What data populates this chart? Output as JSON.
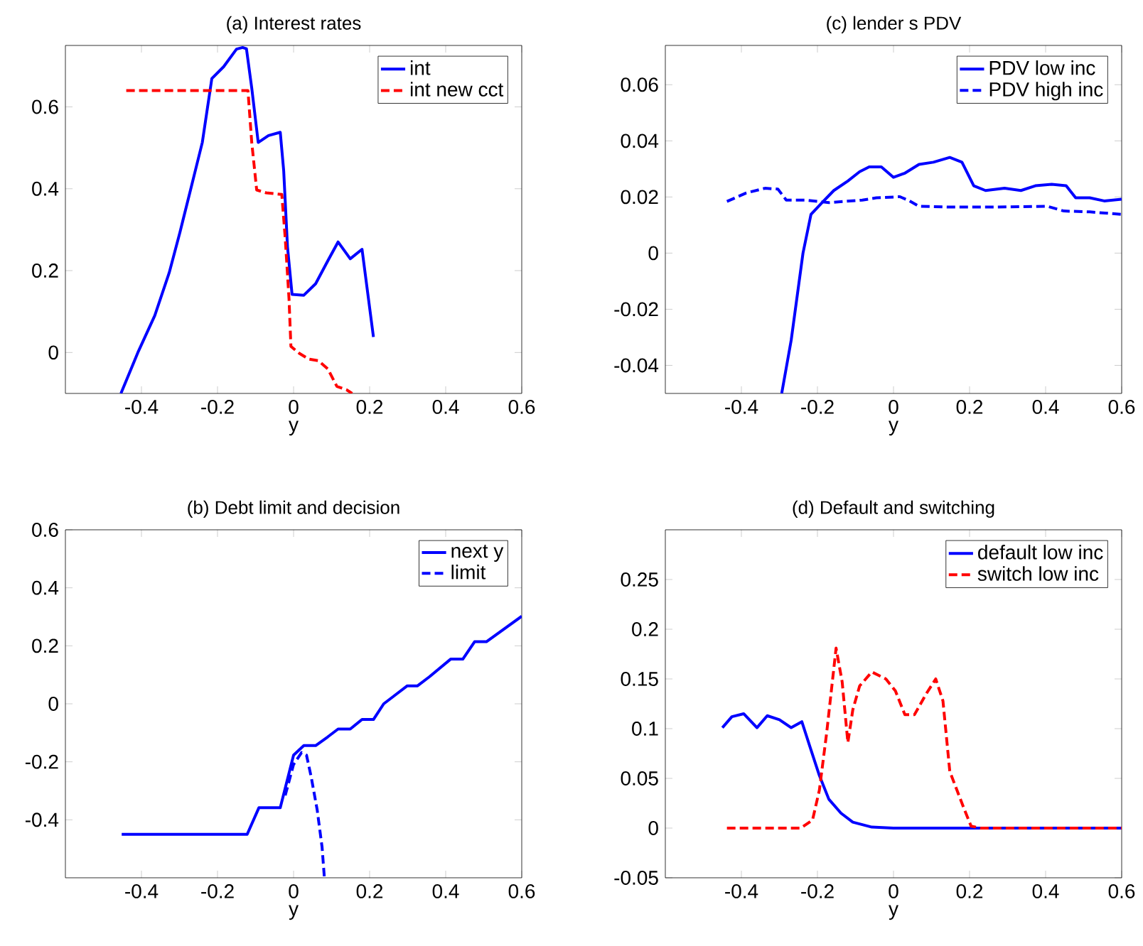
{
  "chart_data": [
    {
      "type": "line",
      "title": "(a) Interest rates",
      "xlabel": "y",
      "xlim": [
        -0.6,
        0.6
      ],
      "xticks": [
        -0.4,
        -0.2,
        0,
        0.2,
        0.4,
        0.6
      ],
      "ylim": [
        -0.1,
        0.75
      ],
      "yticks": [
        0,
        0.2,
        0.4,
        0.6
      ],
      "legend": "top right",
      "series": [
        {
          "name": "int",
          "color": "#0000ff",
          "line_style": "solid",
          "x": [
            -0.454,
            -0.408,
            -0.365,
            -0.327,
            -0.299,
            -0.271,
            -0.24,
            -0.215,
            -0.184,
            -0.15,
            -0.134,
            -0.124,
            -0.11,
            -0.093,
            -0.066,
            -0.035,
            -0.026,
            -0.016,
            -0.004,
            0.027,
            0.058,
            0.09,
            0.117,
            0.149,
            0.18,
            0.21
          ],
          "values": [
            -0.1,
            0.003,
            0.09,
            0.195,
            0.293,
            0.397,
            0.513,
            0.669,
            0.698,
            0.741,
            0.745,
            0.742,
            0.646,
            0.513,
            0.53,
            0.538,
            0.444,
            0.258,
            0.142,
            0.14,
            0.168,
            0.224,
            0.27,
            0.229,
            0.252,
            0.038
          ]
        },
        {
          "name": "int new cct",
          "color": "#ff0000",
          "line_style": "dashed",
          "x": [
            -0.44,
            -0.12,
            -0.11,
            -0.097,
            -0.072,
            -0.031,
            -0.022,
            -0.012,
            -0.007,
            0.015,
            0.04,
            0.065,
            0.09,
            0.114,
            0.139,
            0.154
          ],
          "values": [
            0.64,
            0.64,
            0.513,
            0.397,
            0.39,
            0.386,
            0.28,
            0.131,
            0.015,
            -0.002,
            -0.016,
            -0.02,
            -0.04,
            -0.083,
            -0.091,
            -0.1
          ]
        }
      ]
    },
    {
      "type": "line",
      "title": "(c) lender s PDV",
      "xlabel": "y",
      "xlim": [
        -0.6,
        0.6
      ],
      "xticks": [
        -0.4,
        -0.2,
        0,
        0.2,
        0.4,
        0.6
      ],
      "ylim": [
        -0.05,
        0.074
      ],
      "yticks": [
        -0.04,
        -0.02,
        0,
        0.02,
        0.04,
        0.06
      ],
      "legend": "top right",
      "series": [
        {
          "name": "PDV low inc",
          "color": "#0000ff",
          "line_style": "solid",
          "x": [
            -0.294,
            -0.269,
            -0.238,
            -0.217,
            -0.188,
            -0.157,
            -0.12,
            -0.089,
            -0.064,
            -0.032,
            0,
            0.03,
            0.067,
            0.105,
            0.148,
            0.18,
            0.211,
            0.242,
            0.292,
            0.335,
            0.373,
            0.416,
            0.454,
            0.479,
            0.516,
            0.554,
            0.6
          ],
          "values": [
            -0.05,
            -0.031,
            0,
            0.0138,
            0.018,
            0.0223,
            0.0257,
            0.029,
            0.0307,
            0.0307,
            0.027,
            0.0285,
            0.0316,
            0.0324,
            0.0341,
            0.0324,
            0.024,
            0.0223,
            0.0231,
            0.0223,
            0.024,
            0.0245,
            0.024,
            0.0197,
            0.0197,
            0.0186,
            0.0192
          ]
        },
        {
          "name": "PDV high inc",
          "color": "#0000ff",
          "line_style": "dashed",
          "x": [
            -0.438,
            -0.388,
            -0.338,
            -0.304,
            -0.282,
            -0.232,
            -0.17,
            -0.082,
            -0.045,
            0.017,
            0.042,
            0.067,
            0.142,
            0.267,
            0.404,
            0.448,
            0.516,
            0.6
          ],
          "values": [
            0.0184,
            0.0214,
            0.0231,
            0.0228,
            0.0189,
            0.0189,
            0.018,
            0.0189,
            0.0197,
            0.0201,
            0.0186,
            0.0167,
            0.0164,
            0.0164,
            0.0167,
            0.015,
            0.0147,
            0.0138
          ]
        }
      ]
    },
    {
      "type": "line",
      "title": "(b) Debt limit and decision",
      "xlabel": "y",
      "xlim": [
        -0.6,
        0.6
      ],
      "xticks": [
        -0.4,
        -0.2,
        0,
        0.2,
        0.4,
        0.6
      ],
      "ylim": [
        -0.6,
        0.6
      ],
      "yticks": [
        -0.4,
        -0.2,
        0,
        0.2,
        0.4,
        0.6
      ],
      "legend": "top right",
      "series": [
        {
          "name": "next y",
          "color": "#0000ff",
          "line_style": "solid",
          "x": [
            -0.452,
            -0.122,
            -0.091,
            -0.035,
            0,
            0.027,
            0.058,
            0.09,
            0.117,
            0.149,
            0.18,
            0.21,
            0.237,
            0.27,
            0.299,
            0.326,
            0.357,
            0.413,
            0.445,
            0.476,
            0.507,
            0.6
          ],
          "values": [
            -0.45,
            -0.45,
            -0.358,
            -0.358,
            -0.177,
            -0.144,
            -0.144,
            -0.114,
            -0.087,
            -0.087,
            -0.054,
            -0.054,
            0,
            0.033,
            0.062,
            0.062,
            0.093,
            0.154,
            0.154,
            0.214,
            0.214,
            0.302
          ]
        },
        {
          "name": "limit",
          "color": "#0000ff",
          "line_style": "dashed",
          "x": [
            -0.022,
            0,
            0.021,
            0.034,
            0.046,
            0.062,
            0.075,
            0.081
          ],
          "values": [
            -0.316,
            -0.209,
            -0.168,
            -0.177,
            -0.25,
            -0.365,
            -0.495,
            -0.6
          ]
        }
      ]
    },
    {
      "type": "line",
      "title": "(d) Default and switching",
      "xlabel": "y",
      "xlim": [
        -0.6,
        0.6
      ],
      "xticks": [
        -0.4,
        -0.2,
        0,
        0.2,
        0.4,
        0.6
      ],
      "ylim": [
        -0.05,
        0.3
      ],
      "yticks": [
        -0.05,
        0,
        0.05,
        0.1,
        0.15,
        0.2,
        0.25
      ],
      "legend": "top right",
      "series": [
        {
          "name": "default low inc",
          "color": "#0000ff",
          "line_style": "solid",
          "x": [
            -0.45,
            -0.425,
            -0.394,
            -0.359,
            -0.332,
            -0.3,
            -0.269,
            -0.241,
            -0.219,
            -0.195,
            -0.17,
            -0.138,
            -0.107,
            -0.057,
            0,
            0.6
          ],
          "values": [
            0.101,
            0.112,
            0.115,
            0.101,
            0.113,
            0.109,
            0.101,
            0.107,
            0.081,
            0.053,
            0.029,
            0.015,
            0.006,
            0.001,
            0,
            0
          ]
        },
        {
          "name": "switch low inc",
          "color": "#ff0000",
          "line_style": "dashed",
          "x": [
            -0.438,
            -0.244,
            -0.213,
            -0.195,
            -0.176,
            -0.151,
            -0.135,
            -0.12,
            -0.107,
            -0.089,
            -0.057,
            -0.02,
            0.005,
            0.03,
            0.055,
            0.086,
            0.111,
            0.13,
            0.148,
            0.167,
            0.186,
            0.204,
            0.229,
            0.6
          ],
          "values": [
            0,
            0,
            0.008,
            0.038,
            0.095,
            0.181,
            0.147,
            0.086,
            0.119,
            0.143,
            0.157,
            0.15,
            0.138,
            0.114,
            0.114,
            0.135,
            0.15,
            0.128,
            0.057,
            0.038,
            0.019,
            0.002,
            0,
            0
          ]
        }
      ]
    }
  ]
}
